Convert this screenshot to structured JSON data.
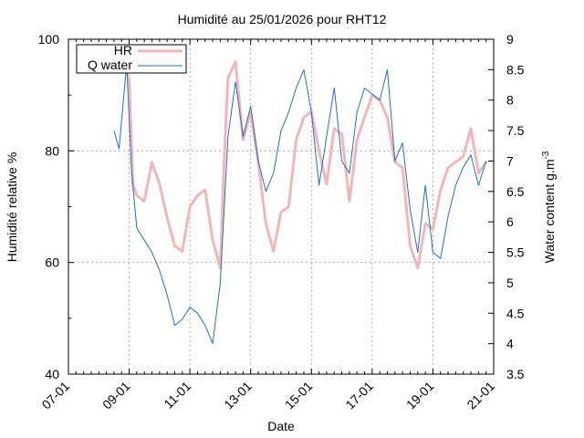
{
  "chart_data": {
    "type": "line",
    "title": "Humidité au 25/01/2026 pour RHT12",
    "xlabel": "Date",
    "ylabel_left": "Humidité relative %",
    "ylabel_right_main": "Water content g.m",
    "ylabel_right_sup": "-3",
    "ylim_left": [
      40,
      100
    ],
    "ylim_right": [
      3.5,
      9
    ],
    "x_range": [
      "2026-01-07",
      "2026-01-21"
    ],
    "x_ticks": [
      "07-01",
      "09-01",
      "11-01",
      "13-01",
      "15-01",
      "17-01",
      "19-01",
      "21-01"
    ],
    "y_ticks_left": [
      "40",
      "60",
      "80",
      "100"
    ],
    "y_ticks_right": [
      "3.5",
      "4",
      "4.5",
      "5",
      "5.5",
      "6",
      "6.5",
      "7",
      "7.5",
      "8",
      "8.5",
      "9"
    ],
    "grid": true,
    "legend_position": "top-left",
    "series": [
      {
        "name": "HR",
        "axis": "left",
        "color": "#f4b6b6",
        "points": [
          [
            "2026-01-08 12:00",
            95
          ],
          [
            "2026-01-08 18:00",
            96
          ],
          [
            "2026-01-09 00:00",
            93
          ],
          [
            "2026-01-09 03:00",
            74
          ],
          [
            "2026-01-09 06:00",
            72
          ],
          [
            "2026-01-09 12:00",
            71
          ],
          [
            "2026-01-09 18:00",
            78
          ],
          [
            "2026-01-10 00:00",
            74
          ],
          [
            "2026-01-10 06:00",
            68
          ],
          [
            "2026-01-10 12:00",
            63
          ],
          [
            "2026-01-10 18:00",
            62
          ],
          [
            "2026-01-11 00:00",
            70
          ],
          [
            "2026-01-11 06:00",
            72
          ],
          [
            "2026-01-11 12:00",
            73
          ],
          [
            "2026-01-11 18:00",
            64
          ],
          [
            "2026-01-12 00:00",
            59
          ],
          [
            "2026-01-12 03:00",
            78
          ],
          [
            "2026-01-12 06:00",
            93
          ],
          [
            "2026-01-12 12:00",
            96
          ],
          [
            "2026-01-12 18:00",
            82
          ],
          [
            "2026-01-13 00:00",
            87
          ],
          [
            "2026-01-13 06:00",
            78
          ],
          [
            "2026-01-13 12:00",
            67
          ],
          [
            "2026-01-13 18:00",
            62
          ],
          [
            "2026-01-14 00:00",
            69
          ],
          [
            "2026-01-14 06:00",
            70
          ],
          [
            "2026-01-14 12:00",
            82
          ],
          [
            "2026-01-14 18:00",
            86
          ],
          [
            "2026-01-15 00:00",
            87
          ],
          [
            "2026-01-15 06:00",
            80
          ],
          [
            "2026-01-15 12:00",
            74
          ],
          [
            "2026-01-15 18:00",
            84
          ],
          [
            "2026-01-16 00:00",
            83
          ],
          [
            "2026-01-16 06:00",
            71
          ],
          [
            "2026-01-16 12:00",
            82
          ],
          [
            "2026-01-16 18:00",
            86
          ],
          [
            "2026-01-17 00:00",
            90
          ],
          [
            "2026-01-17 06:00",
            89
          ],
          [
            "2026-01-17 12:00",
            86
          ],
          [
            "2026-01-17 18:00",
            78
          ],
          [
            "2026-01-18 00:00",
            77
          ],
          [
            "2026-01-18 06:00",
            63
          ],
          [
            "2026-01-18 12:00",
            59
          ],
          [
            "2026-01-18 18:00",
            67
          ],
          [
            "2026-01-19 00:00",
            66
          ],
          [
            "2026-01-19 06:00",
            73
          ],
          [
            "2026-01-19 12:00",
            77
          ],
          [
            "2026-01-19 18:00",
            78
          ],
          [
            "2026-01-20 00:00",
            79
          ],
          [
            "2026-01-20 06:00",
            84
          ],
          [
            "2026-01-20 12:00",
            76
          ],
          [
            "2026-01-20 18:00",
            78
          ]
        ]
      },
      {
        "name": "Q water",
        "axis": "right",
        "color": "#1f6fd2",
        "points": [
          [
            "2026-01-08 12:00",
            7.5
          ],
          [
            "2026-01-08 16:00",
            7.2
          ],
          [
            "2026-01-08 22:00",
            8.6
          ],
          [
            "2026-01-09 02:00",
            6.8
          ],
          [
            "2026-01-09 06:00",
            5.9
          ],
          [
            "2026-01-09 12:00",
            5.7
          ],
          [
            "2026-01-09 18:00",
            5.5
          ],
          [
            "2026-01-10 00:00",
            5.2
          ],
          [
            "2026-01-10 06:00",
            4.8
          ],
          [
            "2026-01-10 12:00",
            4.3
          ],
          [
            "2026-01-10 18:00",
            4.4
          ],
          [
            "2026-01-11 00:00",
            4.6
          ],
          [
            "2026-01-11 06:00",
            4.5
          ],
          [
            "2026-01-11 12:00",
            4.3
          ],
          [
            "2026-01-11 18:00",
            4.0
          ],
          [
            "2026-01-12 00:00",
            5.0
          ],
          [
            "2026-01-12 06:00",
            7.4
          ],
          [
            "2026-01-12 12:00",
            8.3
          ],
          [
            "2026-01-12 18:00",
            7.4
          ],
          [
            "2026-01-13 00:00",
            7.9
          ],
          [
            "2026-01-13 06:00",
            7.0
          ],
          [
            "2026-01-13 12:00",
            6.5
          ],
          [
            "2026-01-13 18:00",
            6.8
          ],
          [
            "2026-01-14 00:00",
            7.5
          ],
          [
            "2026-01-14 06:00",
            7.8
          ],
          [
            "2026-01-14 12:00",
            8.2
          ],
          [
            "2026-01-14 18:00",
            8.5
          ],
          [
            "2026-01-15 00:00",
            7.8
          ],
          [
            "2026-01-15 06:00",
            6.6
          ],
          [
            "2026-01-15 12:00",
            7.4
          ],
          [
            "2026-01-15 18:00",
            8.2
          ],
          [
            "2026-01-16 00:00",
            7.0
          ],
          [
            "2026-01-16 06:00",
            6.8
          ],
          [
            "2026-01-16 12:00",
            7.8
          ],
          [
            "2026-01-16 18:00",
            8.2
          ],
          [
            "2026-01-17 00:00",
            8.1
          ],
          [
            "2026-01-17 06:00",
            8.0
          ],
          [
            "2026-01-17 12:00",
            8.5
          ],
          [
            "2026-01-17 18:00",
            7.0
          ],
          [
            "2026-01-18 00:00",
            7.3
          ],
          [
            "2026-01-18 06:00",
            6.2
          ],
          [
            "2026-01-18 12:00",
            5.5
          ],
          [
            "2026-01-18 18:00",
            6.6
          ],
          [
            "2026-01-19 00:00",
            5.5
          ],
          [
            "2026-01-19 06:00",
            5.4
          ],
          [
            "2026-01-19 12:00",
            6.1
          ],
          [
            "2026-01-19 18:00",
            6.6
          ],
          [
            "2026-01-20 00:00",
            6.9
          ],
          [
            "2026-01-20 06:00",
            7.1
          ],
          [
            "2026-01-20 12:00",
            6.6
          ],
          [
            "2026-01-20 18:00",
            7.0
          ]
        ]
      }
    ]
  }
}
